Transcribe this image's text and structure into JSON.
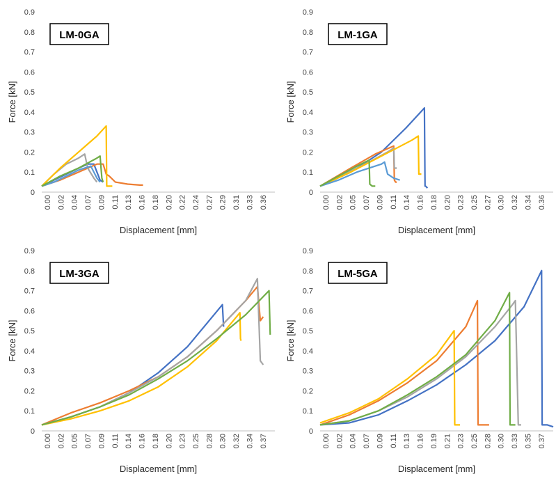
{
  "chart_data": [
    {
      "type": "line",
      "title": "LM-0GA",
      "xlabel": "Displacement [mm]",
      "ylabel": "Force [kN]",
      "ylim": [
        0,
        0.9
      ],
      "yticks": [
        "0",
        "0.1",
        "0.2",
        "0.3",
        "0.4",
        "0.5",
        "0.6",
        "0.7",
        "0.8",
        "0.9"
      ],
      "xlim": [
        0,
        0.38
      ],
      "xticks": [
        "0.00",
        "0.02",
        "0.04",
        "0.07",
        "0.09",
        "0.11",
        "0.13",
        "0.16",
        "0.18",
        "0.20",
        "0.22",
        "0.24",
        "0.27",
        "0.29",
        "0.31",
        "0.33",
        "0.36"
      ],
      "grid": false,
      "legend": "none",
      "series": [
        {
          "color": "#4472C4",
          "x": [
            0,
            0.02,
            0.04,
            0.06,
            0.075,
            0.085,
            0.09,
            0.095,
            0.1
          ],
          "y": [
            0.03,
            0.06,
            0.09,
            0.12,
            0.14,
            0.14,
            0.1,
            0.06,
            0.05
          ]
        },
        {
          "color": "#ED7D31",
          "x": [
            0,
            0.03,
            0.06,
            0.09,
            0.1,
            0.105,
            0.11,
            0.12,
            0.14,
            0.16,
            0.165
          ],
          "y": [
            0.03,
            0.06,
            0.1,
            0.14,
            0.14,
            0.09,
            0.08,
            0.05,
            0.04,
            0.035,
            0.035
          ]
        },
        {
          "color": "#A5A5A5",
          "x": [
            0,
            0.02,
            0.04,
            0.06,
            0.07,
            0.075,
            0.085,
            0.09
          ],
          "y": [
            0.03,
            0.09,
            0.14,
            0.17,
            0.19,
            0.12,
            0.07,
            0.05
          ]
        },
        {
          "color": "#FFC000",
          "x": [
            0,
            0.03,
            0.06,
            0.09,
            0.105,
            0.106,
            0.11,
            0.115
          ],
          "y": [
            0.03,
            0.12,
            0.2,
            0.28,
            0.33,
            0.03,
            0.03,
            0.03
          ]
        },
        {
          "color": "#5B9BD5",
          "x": [
            0,
            0.02,
            0.04,
            0.06,
            0.08,
            0.09,
            0.095
          ],
          "y": [
            0.03,
            0.05,
            0.08,
            0.11,
            0.13,
            0.07,
            0.05
          ]
        },
        {
          "color": "#70AD47",
          "x": [
            0,
            0.03,
            0.06,
            0.09,
            0.095,
            0.098,
            0.1
          ],
          "y": [
            0.03,
            0.08,
            0.12,
            0.17,
            0.18,
            0.07,
            0.05
          ]
        }
      ]
    },
    {
      "type": "line",
      "title": "LM-1GA",
      "xlabel": "Displacement [mm]",
      "ylabel": "Force [kN]",
      "ylim": [
        0,
        0.9
      ],
      "yticks": [
        "0",
        "0.1",
        "0.2",
        "0.3",
        "0.4",
        "0.5",
        "0.6",
        "0.7",
        "0.8",
        "0.9"
      ],
      "xlim": [
        0,
        0.38
      ],
      "xticks": [
        "0.00",
        "0.02",
        "0.05",
        "0.07",
        "0.09",
        "0.11",
        "0.14",
        "0.16",
        "0.18",
        "0.20",
        "0.23",
        "0.25",
        "0.27",
        "0.30",
        "0.32",
        "0.34",
        "0.36"
      ],
      "grid": false,
      "legend": "none",
      "series": [
        {
          "color": "#4472C4",
          "x": [
            0,
            0.05,
            0.1,
            0.14,
            0.17,
            0.171,
            0.172,
            0.175
          ],
          "y": [
            0.03,
            0.1,
            0.2,
            0.32,
            0.42,
            0.03,
            0.03,
            0.02
          ]
        },
        {
          "color": "#ED7D31",
          "x": [
            0,
            0.05,
            0.09,
            0.12,
            0.121,
            0.123,
            0.125
          ],
          "y": [
            0.03,
            0.12,
            0.19,
            0.23,
            0.06,
            0.05,
            0.05
          ]
        },
        {
          "color": "#A5A5A5",
          "x": [
            0,
            0.04,
            0.08,
            0.11,
            0.12,
            0.121,
            0.125
          ],
          "y": [
            0.03,
            0.09,
            0.15,
            0.2,
            0.22,
            0.12,
            0.12
          ]
        },
        {
          "color": "#FFC000",
          "x": [
            0,
            0.05,
            0.1,
            0.15,
            0.16,
            0.161,
            0.165
          ],
          "y": [
            0.03,
            0.1,
            0.18,
            0.26,
            0.28,
            0.09,
            0.09
          ]
        },
        {
          "color": "#5B9BD5",
          "x": [
            0,
            0.03,
            0.06,
            0.1,
            0.105,
            0.11,
            0.12,
            0.13
          ],
          "y": [
            0.03,
            0.06,
            0.1,
            0.14,
            0.15,
            0.09,
            0.07,
            0.06
          ]
        },
        {
          "color": "#70AD47",
          "x": [
            0,
            0.03,
            0.06,
            0.08,
            0.081,
            0.085,
            0.09
          ],
          "y": [
            0.03,
            0.08,
            0.13,
            0.16,
            0.04,
            0.03,
            0.03
          ]
        }
      ]
    },
    {
      "type": "line",
      "title": "LM-3GA",
      "xlabel": "Displacement [mm]",
      "ylabel": "Force [kN]",
      "ylim": [
        0,
        0.9
      ],
      "yticks": [
        "0",
        "0.1",
        "0.2",
        "0.3",
        "0.4",
        "0.5",
        "0.6",
        "0.7",
        "0.8",
        "0.9"
      ],
      "xlim": [
        0,
        0.4
      ],
      "xticks": [
        "0.00",
        "0.02",
        "0.05",
        "0.07",
        "0.09",
        "0.11",
        "0.14",
        "0.16",
        "0.18",
        "0.20",
        "0.23",
        "0.25",
        "0.28",
        "0.30",
        "0.32",
        "0.34",
        "0.37"
      ],
      "grid": false,
      "legend": "none",
      "series": [
        {
          "color": "#4472C4",
          "x": [
            0,
            0.05,
            0.1,
            0.15,
            0.2,
            0.25,
            0.29,
            0.31,
            0.312
          ],
          "y": [
            0.03,
            0.07,
            0.12,
            0.19,
            0.29,
            0.42,
            0.56,
            0.63,
            0.52
          ]
        },
        {
          "color": "#ED7D31",
          "x": [
            0,
            0.05,
            0.1,
            0.15,
            0.2,
            0.25,
            0.3,
            0.35,
            0.37,
            0.375,
            0.38
          ],
          "y": [
            0.03,
            0.09,
            0.14,
            0.2,
            0.27,
            0.37,
            0.5,
            0.65,
            0.72,
            0.55,
            0.57
          ]
        },
        {
          "color": "#A5A5A5",
          "x": [
            0,
            0.05,
            0.1,
            0.15,
            0.2,
            0.25,
            0.3,
            0.35,
            0.37,
            0.375,
            0.38
          ],
          "y": [
            0.03,
            0.07,
            0.12,
            0.19,
            0.27,
            0.37,
            0.5,
            0.65,
            0.76,
            0.35,
            0.33
          ]
        },
        {
          "color": "#FFC000",
          "x": [
            0,
            0.05,
            0.1,
            0.15,
            0.2,
            0.25,
            0.3,
            0.34,
            0.341,
            0.342
          ],
          "y": [
            0.03,
            0.06,
            0.1,
            0.15,
            0.22,
            0.32,
            0.45,
            0.59,
            0.46,
            0.45
          ]
        },
        {
          "color": "#70AD47",
          "x": [
            0,
            0.05,
            0.1,
            0.15,
            0.2,
            0.25,
            0.3,
            0.35,
            0.39,
            0.392
          ],
          "y": [
            0.03,
            0.07,
            0.12,
            0.18,
            0.26,
            0.35,
            0.46,
            0.58,
            0.7,
            0.48
          ]
        }
      ]
    },
    {
      "type": "line",
      "title": "LM-5GA",
      "xlabel": "Displacement [mm]",
      "ylabel": "Force [kN]",
      "ylim": [
        0,
        0.9
      ],
      "yticks": [
        "0",
        "0.1",
        "0.2",
        "0.3",
        "0.4",
        "0.5",
        "0.6",
        "0.7",
        "0.8",
        "0.9"
      ],
      "xlim": [
        0,
        0.4
      ],
      "xticks": [
        "0.00",
        "0.02",
        "0.04",
        "0.07",
        "0.09",
        "0.11",
        "0.13",
        "0.16",
        "0.19",
        "0.21",
        "0.23",
        "0.25",
        "0.28",
        "0.30",
        "0.33",
        "0.35",
        "0.37"
      ],
      "grid": false,
      "legend": "none",
      "series": [
        {
          "color": "#4472C4",
          "x": [
            0,
            0.05,
            0.1,
            0.15,
            0.2,
            0.25,
            0.3,
            0.35,
            0.38,
            0.381,
            0.39,
            0.4
          ],
          "y": [
            0.03,
            0.04,
            0.08,
            0.15,
            0.23,
            0.33,
            0.45,
            0.62,
            0.8,
            0.03,
            0.03,
            0.02
          ]
        },
        {
          "color": "#ED7D31",
          "x": [
            0,
            0.05,
            0.1,
            0.15,
            0.2,
            0.25,
            0.27,
            0.271,
            0.28,
            0.29
          ],
          "y": [
            0.03,
            0.08,
            0.15,
            0.24,
            0.35,
            0.52,
            0.65,
            0.03,
            0.03,
            0.03
          ]
        },
        {
          "color": "#A5A5A5",
          "x": [
            0,
            0.05,
            0.1,
            0.15,
            0.2,
            0.25,
            0.3,
            0.33,
            0.335,
            0.34,
            0.345
          ],
          "y": [
            0.03,
            0.05,
            0.1,
            0.17,
            0.26,
            0.37,
            0.52,
            0.63,
            0.65,
            0.03,
            0.03
          ]
        },
        {
          "color": "#FFC000",
          "x": [
            0,
            0.05,
            0.1,
            0.15,
            0.2,
            0.23,
            0.231,
            0.235,
            0.24
          ],
          "y": [
            0.04,
            0.09,
            0.16,
            0.26,
            0.38,
            0.5,
            0.03,
            0.03,
            0.03
          ]
        },
        {
          "color": "#70AD47",
          "x": [
            0,
            0.05,
            0.1,
            0.15,
            0.2,
            0.25,
            0.3,
            0.325,
            0.326,
            0.33,
            0.335
          ],
          "y": [
            0.03,
            0.05,
            0.1,
            0.18,
            0.27,
            0.38,
            0.55,
            0.69,
            0.03,
            0.03,
            0.03
          ]
        }
      ]
    }
  ]
}
